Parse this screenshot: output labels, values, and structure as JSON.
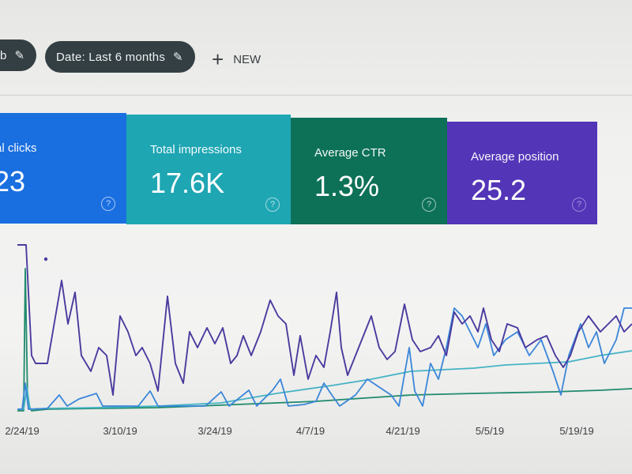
{
  "filters": {
    "chip_partial": {
      "label": "b"
    },
    "chip_date": {
      "label": "Date: Last 6 months"
    },
    "new_button": {
      "label": "NEW",
      "icon": "plus-icon"
    },
    "edit_icon": "pencil-icon"
  },
  "metrics": [
    {
      "label": "al clicks",
      "value": "23",
      "color": "#1a6fe0"
    },
    {
      "label": "Total impressions",
      "value": "17.6K",
      "color": "#1ea6b3"
    },
    {
      "label": "Average CTR",
      "value": "1.3%",
      "color": "#0d7158"
    },
    {
      "label": "Average position",
      "value": "25.2",
      "color": "#5335b8"
    }
  ],
  "help_icon": "question-circle-icon",
  "chart_data": {
    "type": "line",
    "x_tick_labels": [
      "2/24/19",
      "3/10/19",
      "3/24/19",
      "4/7/19",
      "4/21/19",
      "5/5/19",
      "5/19/19"
    ],
    "colors": {
      "position": "#4a3a9e",
      "clicks": "#3a86d8",
      "impressions": "#45b3c4",
      "ctr": "#1f8a6c"
    }
  }
}
